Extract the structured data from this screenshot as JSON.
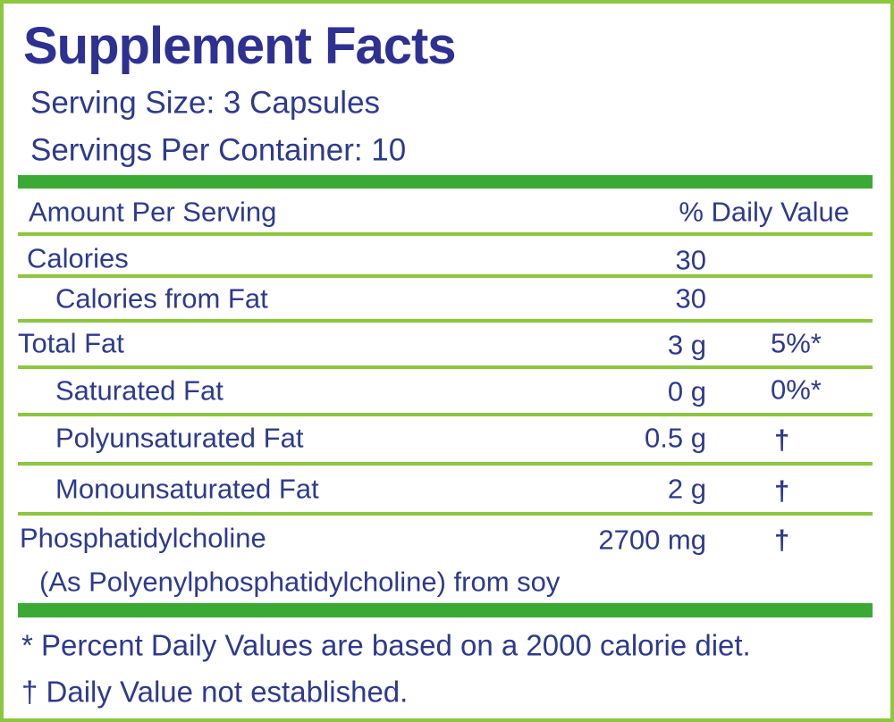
{
  "title": "Supplement Facts",
  "serving_size": "Serving Size: 3 Capsules",
  "servings_per_container": "Servings Per Container: 10",
  "header": {
    "amount": "Amount Per Serving",
    "daily_value": "% Daily Value"
  },
  "rows": [
    {
      "name": "Calories",
      "amount": "30"
    },
    {
      "name": "Calories from Fat",
      "amount": "30"
    },
    {
      "name": "Total Fat",
      "amount": "3 g",
      "daily_value": "5%*"
    },
    {
      "name": "Saturated Fat",
      "amount": "0 g",
      "daily_value": "0%*"
    },
    {
      "name": "Polyunsaturated Fat",
      "amount": "0.5 g",
      "daily_value": "†"
    },
    {
      "name": "Monounsaturated Fat",
      "amount": "2 g",
      "daily_value": "†"
    },
    {
      "name": "Phosphatidylcholine",
      "note": "(As Polyenylphosphatidylcholine) from soy",
      "amount": "2700 mg",
      "daily_value": "†"
    }
  ],
  "footnotes": [
    "* Percent Daily Values are based on a 2000 calorie diet.",
    "† Daily Value not established."
  ]
}
